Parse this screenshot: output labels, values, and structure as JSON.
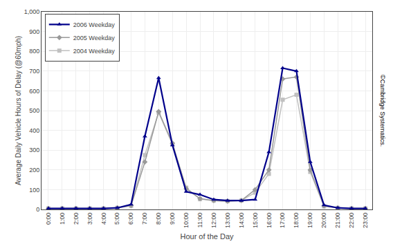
{
  "chart_data": {
    "type": "line",
    "x_label": "Hour of the Day",
    "y_label": "Average Daily Vehicle Hours of Delay (@60mph)",
    "x": [
      0,
      1,
      2,
      3,
      4,
      5,
      6,
      7,
      8,
      9,
      10,
      11,
      12,
      13,
      14,
      15,
      16,
      17,
      18,
      19,
      20,
      21,
      22,
      23
    ],
    "series": [
      {
        "name": "2004 Weekday",
        "color": "#C0C0C0",
        "marker": "square",
        "values": [
          5,
          5,
          5,
          5,
          5,
          8,
          18,
          275,
          490,
          330,
          110,
          52,
          45,
          42,
          45,
          85,
          180,
          555,
          580,
          190,
          15,
          8,
          5,
          5
        ]
      },
      {
        "name": "2005 Weekday",
        "color": "#999999",
        "marker": "diamond",
        "values": [
          5,
          5,
          5,
          5,
          5,
          8,
          20,
          240,
          495,
          335,
          105,
          55,
          45,
          42,
          45,
          100,
          200,
          660,
          670,
          200,
          18,
          8,
          5,
          5
        ]
      },
      {
        "name": "2006 Weekday",
        "color": "#00008B",
        "marker": "triangle-up",
        "values": [
          5,
          5,
          5,
          5,
          5,
          8,
          25,
          370,
          665,
          325,
          90,
          75,
          50,
          45,
          45,
          50,
          290,
          715,
          700,
          240,
          22,
          8,
          5,
          5
        ]
      }
    ],
    "xlim": [
      -0.5,
      23.5
    ],
    "xticks": [
      {
        "value": 0,
        "label": "0:00"
      },
      {
        "value": 1,
        "label": "1:00"
      },
      {
        "value": 2,
        "label": "2:00"
      },
      {
        "value": 3,
        "label": "3:00"
      },
      {
        "value": 4,
        "label": "4:00"
      },
      {
        "value": 5,
        "label": "5:00"
      },
      {
        "value": 6,
        "label": "6:00"
      },
      {
        "value": 7,
        "label": "7:00"
      },
      {
        "value": 8,
        "label": "8:00"
      },
      {
        "value": 9,
        "label": "9:00"
      },
      {
        "value": 10,
        "label": "10:00"
      },
      {
        "value": 11,
        "label": "11:00"
      },
      {
        "value": 12,
        "label": "12:00"
      },
      {
        "value": 13,
        "label": "13:00"
      },
      {
        "value": 14,
        "label": "14:00"
      },
      {
        "value": 15,
        "label": "15:00"
      },
      {
        "value": 16,
        "label": "16:00"
      },
      {
        "value": 17,
        "label": "17:00"
      },
      {
        "value": 18,
        "label": "18:00"
      },
      {
        "value": 19,
        "label": "19:00"
      },
      {
        "value": 20,
        "label": "20:00"
      },
      {
        "value": 21,
        "label": "21:00"
      },
      {
        "value": 22,
        "label": "22:00"
      },
      {
        "value": 23,
        "label": "23:00"
      }
    ],
    "ylim": [
      0,
      1000
    ],
    "yticks": [
      0,
      100,
      200,
      300,
      400,
      500,
      600,
      700,
      800,
      900,
      {
        "value": 1000,
        "label": "1,000"
      }
    ],
    "grid": true,
    "legend": "upper left",
    "annotations": [
      "©Cambridge Systematics."
    ]
  }
}
